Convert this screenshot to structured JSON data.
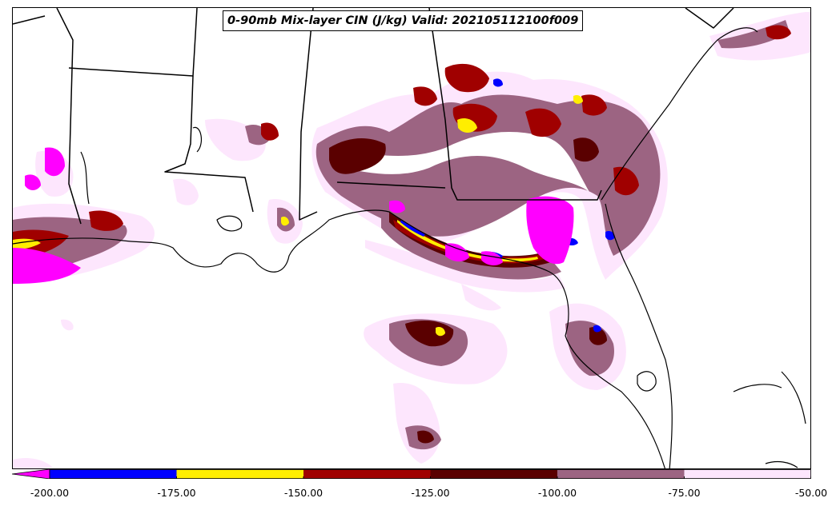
{
  "title": "0-90mb Mix-layer CIN (J/kg) Valid: 202105112100f009",
  "colorbar": {
    "levels": [
      -200,
      -175,
      -150,
      -125,
      -100,
      -75,
      -50
    ],
    "tick_labels": [
      "-200.00",
      "-175.00",
      "-150.00",
      "-125.00",
      "-100.00",
      "-75.00",
      "-50.00"
    ],
    "colors": [
      "#0000ff",
      "#ffee00",
      "#a00000",
      "#5a0000",
      "#9c6482",
      "#fde6fd"
    ],
    "extend_min_color": "#ff00ff"
  },
  "chart_data": {
    "type": "heatmap",
    "title": "0-90mb Mix-layer CIN (J/kg) Valid: 202105112100f009",
    "levels": [
      -200,
      -175,
      -150,
      -125,
      -100,
      -75,
      -50
    ],
    "extend": "min",
    "region": "US Gulf Coast (Louisiana, Mississippi, Alabama, Georgia, Florida) and Gulf of Mexico"
  }
}
